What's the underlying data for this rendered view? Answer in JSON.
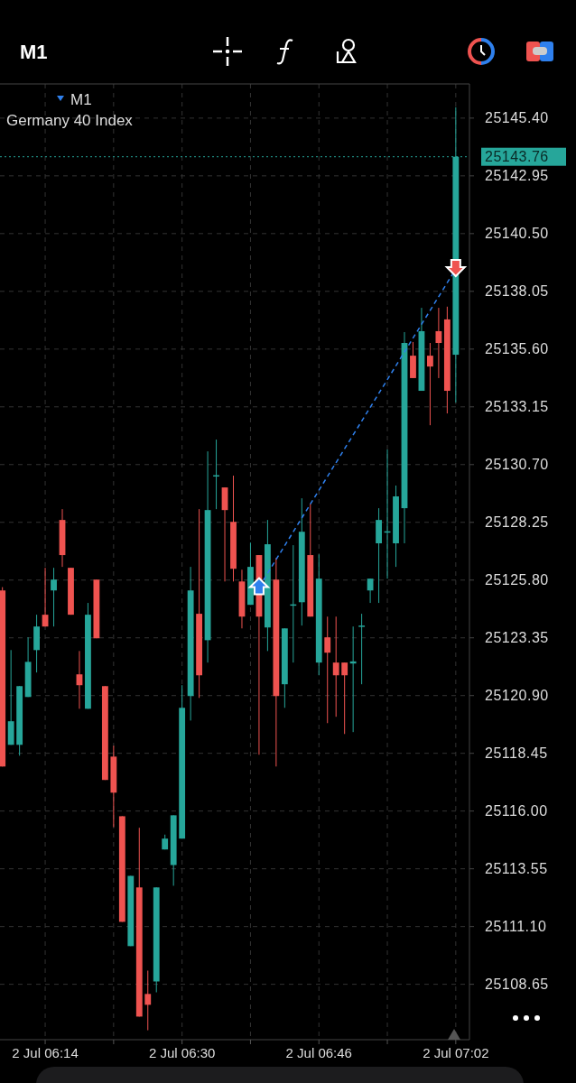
{
  "chart_data": {
    "type": "candlestick",
    "title": "M1",
    "subtitle": "Germany 40 Index",
    "annotations": [
      "M1"
    ],
    "categories": [
      null,
      null,
      null,
      null,
      null,
      "2 Jul 06:14",
      null,
      null,
      null,
      null,
      null,
      null,
      null,
      null,
      null,
      null,
      null,
      null,
      null,
      null,
      null,
      "2 Jul 06:30",
      null,
      null,
      null,
      null,
      null,
      null,
      null,
      null,
      null,
      null,
      null,
      null,
      null,
      null,
      null,
      "2 Jul 06:46",
      null,
      null,
      null,
      null,
      null,
      null,
      null,
      null,
      null,
      null,
      null,
      null,
      null,
      null,
      null,
      "2 Jul 07:02"
    ],
    "ohlc": [
      [
        25125.36,
        25125.5,
        25117.89,
        25117.89
      ],
      [
        25118.81,
        25122.83,
        25118.81,
        25119.81
      ],
      [
        25118.81,
        25121.3,
        25118.35,
        25121.3
      ],
      [
        25120.84,
        25123.37,
        25120.84,
        25122.33
      ],
      [
        25122.83,
        25124.33,
        25121.88,
        25123.83
      ],
      [
        25124.33,
        25126.32,
        25123.83,
        25123.83
      ],
      [
        25125.36,
        25126.32,
        25123.83,
        25125.82
      ],
      [
        25128.35,
        25128.81,
        25126.36,
        25126.86
      ],
      [
        25126.32,
        25126.32,
        25124.33,
        25124.33
      ],
      [
        25121.8,
        25122.79,
        25120.34,
        25121.34
      ],
      [
        25120.34,
        25124.83,
        25120.34,
        25124.33
      ],
      [
        25125.82,
        25125.82,
        25123.33,
        25123.33
      ],
      [
        25121.3,
        25121.3,
        25117.32,
        25117.32
      ],
      [
        25118.31,
        25118.77,
        25115.32,
        25116.78
      ],
      [
        25115.78,
        25115.78,
        25111.3,
        25111.3
      ],
      [
        25110.27,
        25113.25,
        25110.27,
        25113.25
      ],
      [
        25112.76,
        25115.29,
        25107.28,
        25107.28
      ],
      [
        25108.24,
        25109.23,
        25106.7,
        25107.78
      ],
      [
        25108.77,
        25112.76,
        25108.31,
        25112.76
      ],
      [
        25114.37,
        25115.0,
        25114.37,
        25114.83
      ],
      [
        25113.71,
        25115.82,
        25112.83,
        25115.82
      ],
      [
        25114.83,
        25121.34,
        25114.83,
        25120.38
      ],
      [
        25120.88,
        25126.36,
        25119.84,
        25125.36
      ],
      [
        25124.37,
        25128.81,
        25120.8,
        25121.76
      ],
      [
        25123.25,
        25131.26,
        25122.3,
        25128.77
      ],
      [
        25130.23,
        25131.76,
        25128.81,
        25130.25
      ],
      [
        25129.73,
        25129.73,
        25125.74,
        25128.77
      ],
      [
        25128.27,
        25130.23,
        25125.74,
        25126.28
      ],
      [
        25125.74,
        25126.24,
        25123.75,
        25124.25
      ],
      [
        25124.75,
        25127.39,
        25124.75,
        25126.36
      ],
      [
        25126.86,
        25126.86,
        25118.39,
        25124.25
      ],
      [
        25123.79,
        25128.35,
        25122.79,
        25127.32
      ],
      [
        25125.82,
        25126.74,
        25117.89,
        25120.88
      ],
      [
        25121.38,
        25123.75,
        25120.38,
        25123.75
      ],
      [
        25124.75,
        25127.28,
        25122.3,
        25124.77
      ],
      [
        25124.86,
        25129.27,
        25123.87,
        25127.85
      ],
      [
        25126.86,
        25129.04,
        25124.25,
        25124.25
      ],
      [
        25122.3,
        25126.89,
        25121.76,
        25125.86
      ],
      [
        25123.37,
        25124.25,
        25119.73,
        25122.72
      ],
      [
        25122.3,
        25124.25,
        25120.0,
        25121.76
      ],
      [
        25122.3,
        25122.3,
        25119.27,
        25121.76
      ],
      [
        25122.26,
        25123.83,
        25119.35,
        25122.35
      ],
      [
        25123.85,
        25124.37,
        25121.38,
        25123.87
      ],
      [
        25125.36,
        25125.86,
        25124.83,
        25125.86
      ],
      [
        25127.36,
        25128.85,
        25124.83,
        25128.35
      ],
      [
        25127.85,
        25131.34,
        25125.86,
        25127.87
      ],
      [
        25127.36,
        25129.81,
        25126.36,
        25129.35
      ],
      [
        25128.85,
        25136.32,
        25127.36,
        25135.86
      ],
      [
        25135.32,
        25135.9,
        25134.37,
        25134.37
      ],
      [
        25133.83,
        25137.35,
        25133.83,
        25136.36
      ],
      [
        25135.32,
        25135.86,
        25132.37,
        25134.86
      ],
      [
        25136.36,
        25137.35,
        25134.37,
        25135.86
      ],
      [
        25136.86,
        25137.4,
        25132.87,
        25133.83
      ],
      [
        25135.36,
        25145.86,
        25133.33,
        25143.76
      ]
    ],
    "colors": [
      "#ef5350",
      "#26a69a",
      "#26a69a",
      "#26a69a",
      "#26a69a",
      "#ef5350",
      "#26a69a",
      "#ef5350",
      "#ef5350",
      "#ef5350",
      "#26a69a",
      "#ef5350",
      "#ef5350",
      "#ef5350",
      "#ef5350",
      "#26a69a",
      "#ef5350",
      "#ef5350",
      "#26a69a",
      "#26a69a",
      "#26a69a",
      "#26a69a",
      "#26a69a",
      "#ef5350",
      "#26a69a",
      "#26a69a",
      "#ef5350",
      "#ef5350",
      "#ef5350",
      "#26a69a",
      "#ef5350",
      "#26a69a",
      "#ef5350",
      "#26a69a",
      "#26a69a",
      "#26a69a",
      "#ef5350",
      "#26a69a",
      "#ef5350",
      "#ef5350",
      "#ef5350",
      "#26a69a",
      "#26a69a",
      "#26a69a",
      "#26a69a",
      "#26a69a",
      "#26a69a",
      "#26a69a",
      "#ef5350",
      "#26a69a",
      "#ef5350",
      "#ef5350",
      "#ef5350",
      "#26a69a"
    ],
    "series": [
      {
        "type": "line",
        "values": [
          null,
          null,
          null,
          null,
          null,
          null,
          null,
          null,
          null,
          null,
          null,
          null,
          null,
          null,
          null,
          null,
          null,
          null,
          null,
          null,
          null,
          null,
          null,
          null,
          null,
          null,
          null,
          null,
          null,
          null,
          25125.5,
          null,
          null,
          null,
          null,
          null,
          null,
          null,
          null,
          null,
          null,
          null,
          null,
          null,
          null,
          null,
          null,
          null,
          null,
          null,
          null,
          null,
          null,
          25139.0
        ],
        "color": "#2f80ed",
        "line_style": "dashed",
        "marker": "triangle"
      }
    ],
    "ylim": [
      25106.3,
      25146.85
    ],
    "yticks": [
      {
        "value": 25108.65,
        "label": "25108.65"
      },
      {
        "value": 25111.1,
        "label": "25111.10"
      },
      {
        "value": 25113.55,
        "label": "25113.55"
      },
      {
        "value": 25116.0,
        "label": "25116.00"
      },
      {
        "value": 25118.45,
        "label": "25118.45"
      },
      {
        "value": 25120.9,
        "label": "25120.90"
      },
      {
        "value": 25123.35,
        "label": "25123.35"
      },
      {
        "value": 25125.8,
        "label": "25125.80"
      },
      {
        "value": 25128.25,
        "label": "25128.25"
      },
      {
        "value": 25130.7,
        "label": "25130.70"
      },
      {
        "value": 25133.15,
        "label": "25133.15"
      },
      {
        "value": 25135.6,
        "label": "25135.60"
      },
      {
        "value": 25138.05,
        "label": "25138.05"
      },
      {
        "value": 25140.5,
        "label": "25140.50"
      },
      {
        "value": 25142.95,
        "label": "25142.95"
      },
      {
        "value": 25145.4,
        "label": "25145.40"
      }
    ],
    "grid": true,
    "ref_lines": [
      {
        "axis": "y",
        "value": 25143.76,
        "label": "25143.76",
        "color": "#26a69a",
        "line_style": "dotted"
      }
    ]
  }
}
